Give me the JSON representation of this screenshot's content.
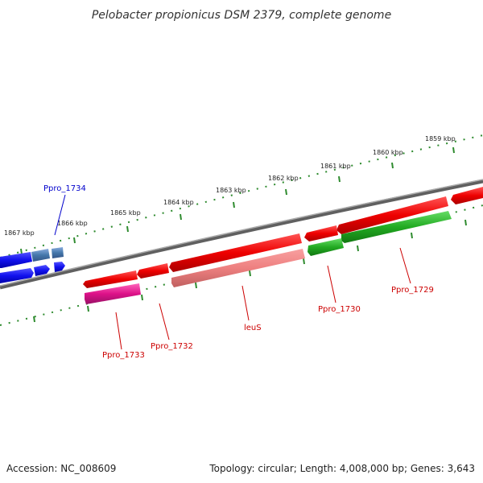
{
  "title": "Pelobacter propionicus DSM 2379, complete genome",
  "footer": {
    "accession": "Accession: NC_008609",
    "summary": "Topology: circular; Length: 4,008,000 bp; Genes: 3,643"
  },
  "colors": {
    "backbone": "#808080",
    "tick": "#2e8b2e",
    "forward_gene": "#ee1111",
    "reverse_gene": "#1a1aee",
    "label_red": "#cc0000",
    "label_blue": "#0000cc"
  },
  "kbp_labels": [
    "1859 kbp",
    "1860 kbp",
    "1861 kbp",
    "1862 kbp",
    "1863 kbp",
    "1864 kbp",
    "1865 kbp",
    "1866 kbp",
    "1867 kbp"
  ],
  "gene_labels": [
    {
      "name": "Ppro_1734",
      "color": "blue"
    },
    {
      "name": "Ppro_1733",
      "color": "red"
    },
    {
      "name": "Ppro_1732",
      "color": "red"
    },
    {
      "name": "leuS",
      "color": "red"
    },
    {
      "name": "Ppro_1730",
      "color": "red"
    },
    {
      "name": "Ppro_1729",
      "color": "red"
    }
  ]
}
